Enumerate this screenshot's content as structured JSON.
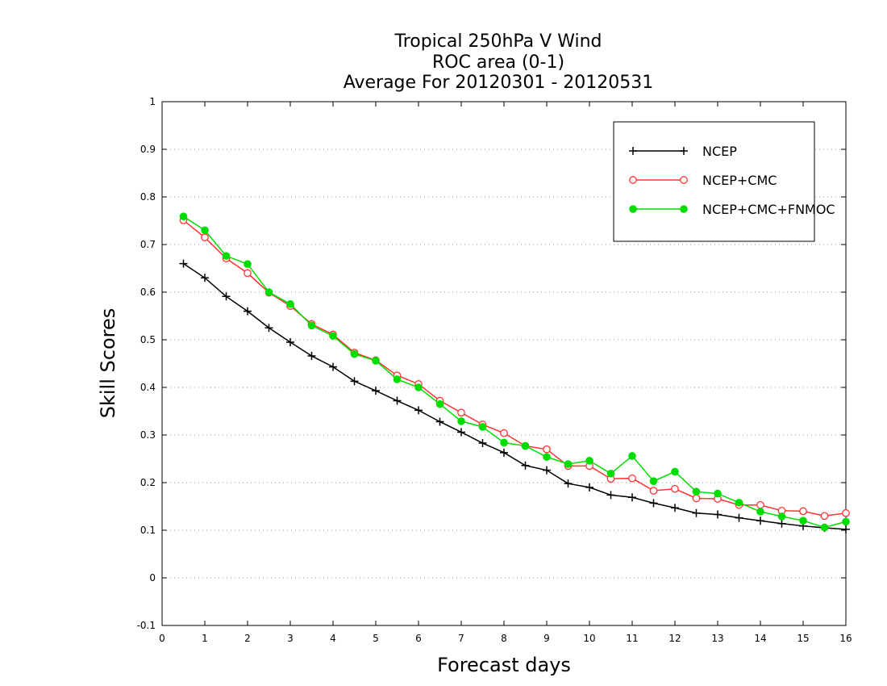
{
  "chart_data": {
    "type": "line",
    "title": [
      "Tropical 250hPa V Wind",
      "ROC area (0-1)",
      "Average For 20120301 - 20120531"
    ],
    "xlabel": "Forecast days",
    "ylabel": "Skill Scores",
    "xlim": [
      0,
      16
    ],
    "ylim": [
      -0.1,
      1
    ],
    "xticks": [
      "0",
      "1",
      "2",
      "3",
      "4",
      "5",
      "6",
      "7",
      "8",
      "9",
      "10",
      "11",
      "12",
      "13",
      "14",
      "15",
      "16"
    ],
    "yticks": [
      "-0.1",
      "0",
      "0.1",
      "0.2",
      "0.3",
      "0.4",
      "0.5",
      "0.6",
      "0.7",
      "0.8",
      "0.9",
      "1"
    ],
    "grid": "horizontal dotted",
    "legend_position": "top-right",
    "x": [
      0.5,
      1,
      1.5,
      2,
      2.5,
      3,
      3.5,
      4,
      4.5,
      5,
      5.5,
      6,
      6.5,
      7,
      7.5,
      8,
      8.5,
      9,
      9.5,
      10,
      10.5,
      11,
      11.5,
      12,
      12.5,
      13,
      13.5,
      14,
      14.5,
      15,
      15.5,
      16
    ],
    "series": [
      {
        "name": "NCEP",
        "color": "#000000",
        "marker": "plus",
        "values": [
          0.66,
          0.63,
          0.591,
          0.56,
          0.525,
          0.495,
          0.466,
          0.443,
          0.413,
          0.393,
          0.372,
          0.352,
          0.328,
          0.306,
          0.283,
          0.263,
          0.236,
          0.226,
          0.198,
          0.19,
          0.174,
          0.169,
          0.157,
          0.147,
          0.136,
          0.133,
          0.126,
          0.12,
          0.114,
          0.109,
          0.105,
          0.102
        ]
      },
      {
        "name": "NCEP+CMC",
        "color": "#ff3333",
        "marker": "open-circle",
        "values": [
          0.751,
          0.715,
          0.671,
          0.64,
          0.599,
          0.571,
          0.533,
          0.511,
          0.473,
          0.457,
          0.425,
          0.407,
          0.372,
          0.347,
          0.322,
          0.304,
          0.277,
          0.27,
          0.235,
          0.235,
          0.208,
          0.209,
          0.183,
          0.187,
          0.167,
          0.166,
          0.153,
          0.153,
          0.141,
          0.14,
          0.13,
          0.136
        ]
      },
      {
        "name": "NCEP+CMC+FNMOC",
        "color": "#00dd00",
        "marker": "filled-circle",
        "values": [
          0.759,
          0.73,
          0.676,
          0.659,
          0.6,
          0.575,
          0.53,
          0.508,
          0.47,
          0.456,
          0.417,
          0.4,
          0.365,
          0.329,
          0.317,
          0.284,
          0.277,
          0.254,
          0.239,
          0.246,
          0.219,
          0.256,
          0.203,
          0.223,
          0.181,
          0.177,
          0.158,
          0.139,
          0.129,
          0.12,
          0.106,
          0.118
        ]
      }
    ]
  }
}
